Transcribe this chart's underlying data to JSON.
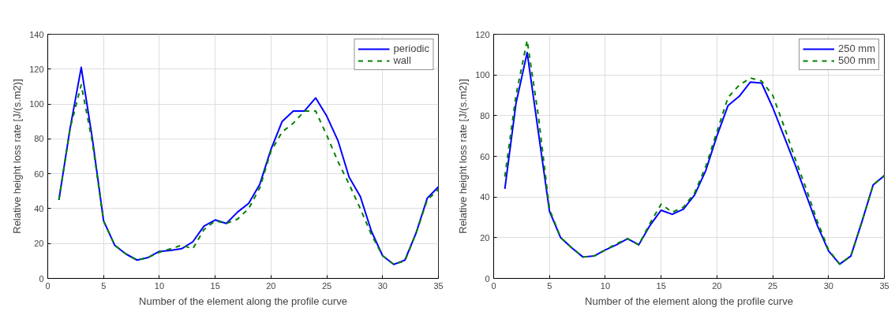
{
  "chart_data": [
    {
      "type": "line",
      "xlabel": "Number of the element along the profile curve",
      "ylabel": "Relative height loss rate [J/(s.m2)]",
      "x": [
        1,
        2,
        3,
        4,
        5,
        6,
        7,
        8,
        9,
        10,
        11,
        12,
        13,
        14,
        15,
        16,
        17,
        18,
        19,
        20,
        21,
        22,
        23,
        24,
        25,
        26,
        27,
        28,
        29,
        30,
        31,
        32,
        33,
        34,
        35
      ],
      "xlim": [
        0,
        35
      ],
      "ylim": [
        0,
        140
      ],
      "xticks": [
        0,
        5,
        10,
        15,
        20,
        25,
        30,
        35
      ],
      "yticks": [
        0,
        20,
        40,
        60,
        80,
        100,
        120,
        140
      ],
      "grid": true,
      "legend": "top right",
      "series": [
        {
          "name": "periodic",
          "color": "#0000ff",
          "line_style": "solid",
          "values": [
            45,
            86,
            121,
            80,
            33,
            19,
            14,
            10.5,
            12,
            15.5,
            16,
            17,
            21,
            30,
            33.5,
            31.5,
            38,
            43,
            54,
            74,
            90,
            96,
            96,
            103.5,
            93,
            79,
            58,
            47,
            27,
            13,
            8,
            10.5,
            26,
            46,
            52.5
          ]
        },
        {
          "name": "wall",
          "color": "#008000",
          "line_style": "dashed",
          "values": [
            45,
            86,
            111,
            78,
            33,
            19,
            14,
            10.5,
            12,
            15,
            17,
            19,
            17,
            28,
            33,
            31.5,
            34,
            40,
            52,
            73,
            84,
            89,
            96,
            96,
            82,
            67,
            54,
            40,
            25,
            13,
            8,
            10,
            26,
            45,
            51
          ]
        }
      ]
    },
    {
      "type": "line",
      "xlabel": "Number of the element along the profile curve",
      "ylabel": "Relative height loss rate [J/(s.m2)]",
      "x": [
        1,
        2,
        3,
        4,
        5,
        6,
        7,
        8,
        9,
        10,
        11,
        12,
        13,
        14,
        15,
        16,
        17,
        18,
        19,
        20,
        21,
        22,
        23,
        24,
        25,
        26,
        27,
        28,
        29,
        30,
        31,
        32,
        33,
        34,
        35
      ],
      "xlim": [
        0,
        35
      ],
      "ylim": [
        0,
        120
      ],
      "xticks": [
        0,
        5,
        10,
        15,
        20,
        25,
        30,
        35
      ],
      "yticks": [
        0,
        20,
        40,
        60,
        80,
        100,
        120
      ],
      "grid": true,
      "legend": "top right",
      "series": [
        {
          "name": "250 mm",
          "color": "#0000ff",
          "line_style": "solid",
          "values": [
            44,
            86,
            111,
            72,
            33,
            20,
            15,
            10.5,
            11,
            14,
            16.5,
            19.5,
            16.5,
            26,
            33.5,
            31.5,
            34,
            41,
            53,
            70,
            85,
            89.5,
            96.5,
            96,
            84,
            70,
            56,
            41,
            26,
            13.5,
            7,
            11,
            28,
            46,
            50.5
          ]
        },
        {
          "name": "500 mm",
          "color": "#008000",
          "line_style": "dashed",
          "values": [
            50,
            90,
            117,
            80,
            34,
            20,
            15,
            10.5,
            11,
            14,
            17,
            19.5,
            16.5,
            27,
            36.5,
            32.5,
            35,
            42,
            55,
            72,
            89,
            95,
            98.5,
            97,
            90,
            75,
            59,
            44,
            28,
            14,
            7,
            11,
            28,
            46,
            50.5
          ]
        }
      ]
    }
  ]
}
